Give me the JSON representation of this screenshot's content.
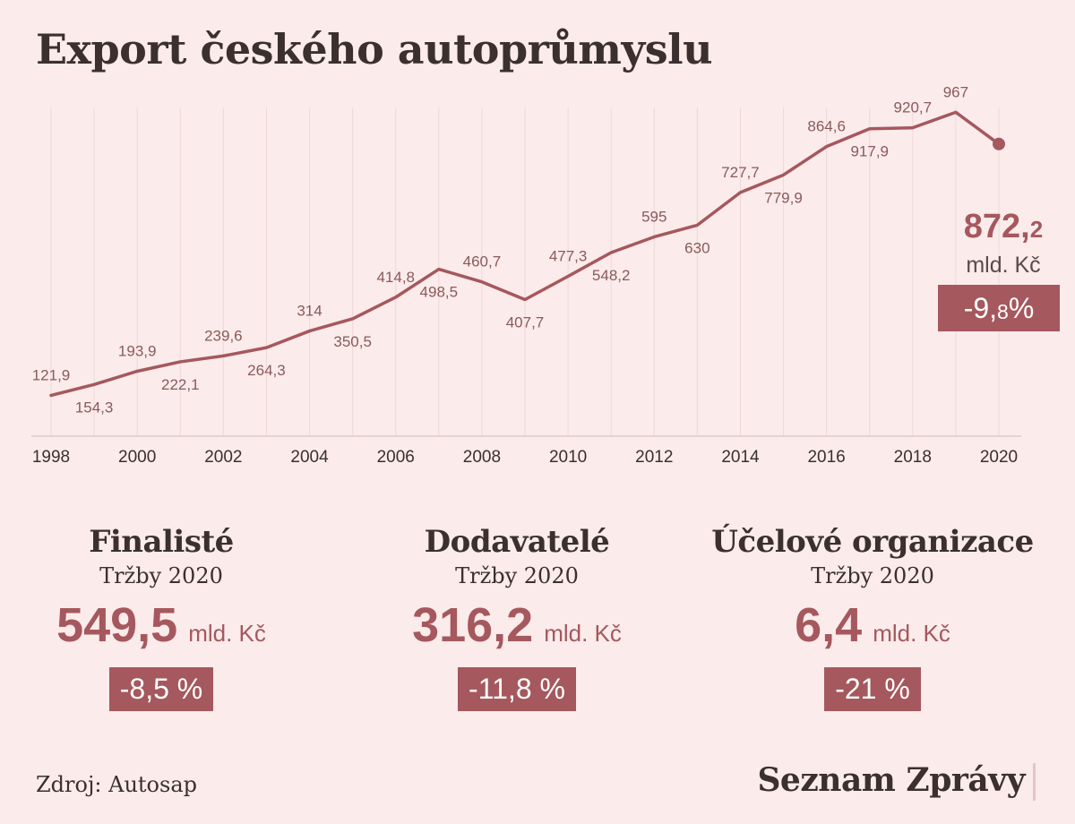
{
  "title": "Export českého autoprůmyslu",
  "chart_data": {
    "type": "line",
    "x": [
      1998,
      1999,
      2000,
      2001,
      2002,
      2003,
      2004,
      2005,
      2006,
      2007,
      2008,
      2009,
      2010,
      2011,
      2012,
      2013,
      2014,
      2015,
      2016,
      2017,
      2018,
      2019,
      2020
    ],
    "values": [
      121.9,
      154.3,
      193.9,
      222.1,
      239.6,
      264.3,
      314,
      350.5,
      414.8,
      498.5,
      460.7,
      407.7,
      477.3,
      548.2,
      595,
      630,
      727.7,
      779.9,
      864.6,
      917.9,
      920.7,
      967,
      872.2
    ],
    "labels": [
      "121,9",
      "154,3",
      "193,9",
      "222,1",
      "239,6",
      "264,3",
      "314",
      "350,5",
      "414,8",
      "498,5",
      "460,7",
      "407,7",
      "477,3",
      "548,2",
      "595",
      "630",
      "727,7",
      "779,9",
      "864,6",
      "917,9",
      "920,7",
      "967",
      "872,2"
    ],
    "x_ticks": [
      "1998",
      "2000",
      "2002",
      "2004",
      "2006",
      "2008",
      "2010",
      "2012",
      "2014",
      "2016",
      "2018",
      "2020"
    ],
    "xlim": [
      1998,
      2020
    ],
    "ylim": [
      0,
      1000
    ],
    "grid": "vertical",
    "colors": {
      "line": "#a5585d",
      "label": "#8a5a5a",
      "grid": "#efd8d8"
    }
  },
  "callout": {
    "value_main": "872,",
    "value_dec": "2",
    "unit": "mld. Kč",
    "change_main": "-9,",
    "change_small": "8",
    "change_suffix": " %"
  },
  "stats": [
    {
      "title": "Finalisté",
      "subtitle": "Tržby 2020",
      "value": "549,5",
      "unit": "mld. Kč",
      "change": "-8,5 %"
    },
    {
      "title": "Dodavatelé",
      "subtitle": "Tržby 2020",
      "value": "316,2",
      "unit": "mld. Kč",
      "change": "-11,8 %"
    },
    {
      "title": "Účelové organizace",
      "subtitle": "Tržby 2020",
      "value": "6,4",
      "unit": "mld. Kč",
      "change": "-21 %"
    }
  ],
  "source": "Zdroj: Autosap",
  "brand": "Seznam Zprávy",
  "accent": "#a5585d",
  "background": "#fbebeb"
}
